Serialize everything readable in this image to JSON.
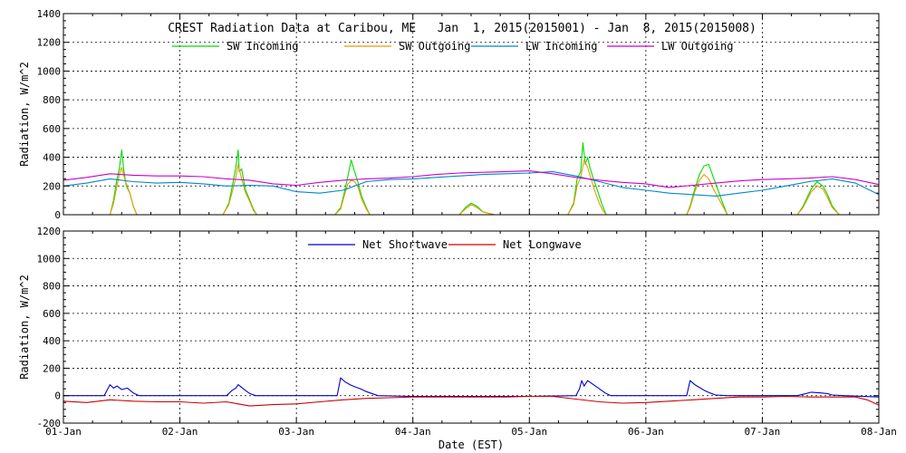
{
  "chart_data": [
    {
      "type": "line",
      "title": "CREST Radiation Data at Caribou, ME   Jan  1, 2015(2015001) - Jan  8, 2015(2015008)",
      "ylabel": "Radiation, W/m^2",
      "xlabel": "",
      "ylim": [
        0,
        1400
      ],
      "yticks": [
        0,
        200,
        400,
        600,
        800,
        1000,
        1200,
        1400
      ],
      "xlim": [
        0,
        7
      ],
      "xtick_labels": [
        "01-Jan",
        "02-Jan",
        "03-Jan",
        "04-Jan",
        "05-Jan",
        "06-Jan",
        "07-Jan",
        "08-Jan"
      ],
      "grid": true,
      "legend_placement": "top",
      "series": [
        {
          "name": "SW Incoming",
          "color": "#00dd00",
          "x": [
            0,
            0.4,
            0.43,
            0.46,
            0.48,
            0.5,
            0.52,
            0.54,
            0.57,
            0.6,
            0.63,
            1.37,
            1.42,
            1.45,
            1.48,
            1.5,
            1.51,
            1.53,
            1.56,
            1.6,
            1.63,
            1.66,
            2.33,
            2.38,
            2.41,
            2.44,
            2.47,
            2.5,
            2.53,
            2.56,
            2.6,
            2.63,
            3.3,
            3.4,
            3.45,
            3.5,
            3.55,
            3.6,
            3.7,
            4.33,
            4.38,
            4.41,
            4.44,
            4.46,
            4.48,
            4.5,
            4.52,
            4.55,
            4.58,
            4.62,
            4.66,
            5.35,
            5.38,
            5.42,
            5.46,
            5.5,
            5.54,
            5.58,
            5.62,
            5.66,
            5.7,
            6.3,
            6.35,
            6.42,
            6.47,
            6.52,
            6.56,
            6.6,
            6.66,
            7
          ],
          "y": [
            0,
            0,
            100,
            250,
            320,
            450,
            300,
            200,
            150,
            60,
            0,
            0,
            80,
            200,
            330,
            450,
            300,
            320,
            180,
            100,
            40,
            0,
            0,
            50,
            150,
            260,
            380,
            300,
            220,
            130,
            50,
            0,
            0,
            0,
            50,
            80,
            60,
            20,
            0,
            0,
            80,
            250,
            300,
            500,
            350,
            400,
            330,
            250,
            180,
            80,
            0,
            0,
            60,
            180,
            280,
            340,
            350,
            260,
            170,
            80,
            0,
            0,
            60,
            180,
            230,
            200,
            140,
            60,
            0,
            0
          ]
        },
        {
          "name": "SW Outgoing",
          "color": "#ee9900",
          "x": [
            0,
            0.4,
            0.43,
            0.46,
            0.48,
            0.5,
            0.53,
            0.57,
            0.6,
            0.63,
            1.37,
            1.42,
            1.45,
            1.48,
            1.5,
            1.53,
            1.56,
            1.6,
            1.63,
            1.66,
            2.33,
            2.38,
            2.41,
            2.44,
            2.47,
            2.5,
            2.53,
            2.56,
            2.6,
            2.63,
            3.3,
            3.4,
            3.45,
            3.5,
            3.55,
            3.6,
            3.7,
            4.33,
            4.38,
            4.41,
            4.44,
            4.47,
            4.5,
            4.53,
            4.56,
            4.6,
            4.63,
            4.66,
            5.35,
            5.38,
            5.42,
            5.46,
            5.5,
            5.54,
            5.58,
            5.62,
            5.66,
            5.7,
            6.3,
            6.35,
            6.42,
            6.47,
            6.52,
            6.56,
            6.6,
            6.66,
            7
          ],
          "y": [
            0,
            0,
            80,
            200,
            280,
            330,
            240,
            150,
            60,
            0,
            0,
            70,
            160,
            260,
            350,
            250,
            160,
            90,
            30,
            0,
            0,
            40,
            130,
            210,
            240,
            230,
            190,
            110,
            40,
            0,
            0,
            0,
            40,
            70,
            50,
            20,
            0,
            0,
            70,
            200,
            260,
            380,
            330,
            250,
            170,
            80,
            30,
            0,
            0,
            50,
            160,
            240,
            280,
            250,
            180,
            120,
            60,
            0,
            0,
            50,
            160,
            200,
            180,
            120,
            50,
            0,
            0
          ]
        },
        {
          "name": "LW Incoming",
          "color": "#0088cc",
          "x": [
            0,
            0.2,
            0.4,
            0.6,
            0.8,
            1.0,
            1.2,
            1.4,
            1.6,
            1.8,
            2.0,
            2.2,
            2.4,
            2.6,
            2.8,
            3.0,
            3.2,
            3.4,
            3.6,
            3.8,
            4.0,
            4.2,
            4.4,
            4.6,
            4.8,
            5.0,
            5.2,
            5.4,
            5.6,
            5.8,
            6.0,
            6.2,
            6.4,
            6.6,
            6.8,
            7.0
          ],
          "y": [
            200,
            220,
            250,
            230,
            220,
            225,
            215,
            200,
            205,
            200,
            160,
            150,
            170,
            230,
            245,
            250,
            260,
            270,
            280,
            285,
            290,
            300,
            270,
            230,
            190,
            170,
            150,
            140,
            130,
            150,
            170,
            200,
            230,
            250,
            220,
            140
          ]
        },
        {
          "name": "LW Outgoing",
          "color": "#cc00cc",
          "x": [
            0,
            0.2,
            0.4,
            0.6,
            0.8,
            1.0,
            1.2,
            1.4,
            1.6,
            1.8,
            2.0,
            2.2,
            2.4,
            2.6,
            2.8,
            3.0,
            3.2,
            3.4,
            3.6,
            3.8,
            4.0,
            4.2,
            4.4,
            4.6,
            4.8,
            5.0,
            5.2,
            5.4,
            5.6,
            5.8,
            6.0,
            6.2,
            6.4,
            6.6,
            6.8,
            7.0
          ],
          "y": [
            240,
            260,
            285,
            275,
            270,
            270,
            265,
            250,
            240,
            215,
            205,
            225,
            240,
            250,
            255,
            265,
            280,
            290,
            295,
            300,
            305,
            285,
            260,
            240,
            225,
            215,
            190,
            205,
            220,
            235,
            245,
            250,
            255,
            265,
            245,
            210
          ]
        }
      ]
    },
    {
      "type": "line",
      "title": "",
      "ylabel": "Radiation, W/m^2",
      "xlabel": "Date (EST)",
      "ylim": [
        -200,
        1200
      ],
      "yticks": [
        -200,
        0,
        200,
        400,
        600,
        800,
        1000,
        1200
      ],
      "xlim": [
        0,
        7
      ],
      "xtick_labels": [
        "01-Jan",
        "02-Jan",
        "03-Jan",
        "04-Jan",
        "05-Jan",
        "06-Jan",
        "07-Jan",
        "08-Jan"
      ],
      "grid": true,
      "legend_placement": "top",
      "series": [
        {
          "name": "Net Shortwave",
          "color": "#0000cc",
          "x": [
            0,
            0.35,
            0.4,
            0.43,
            0.46,
            0.5,
            0.55,
            0.6,
            0.65,
            1.0,
            1.4,
            1.45,
            1.48,
            1.5,
            1.53,
            1.56,
            1.6,
            1.65,
            2.0,
            2.35,
            2.38,
            2.42,
            2.46,
            2.5,
            2.55,
            2.6,
            2.7,
            3.0,
            3.5,
            4.0,
            4.4,
            4.43,
            4.45,
            4.47,
            4.5,
            4.55,
            4.6,
            4.65,
            4.7,
            5.0,
            5.35,
            5.38,
            5.42,
            5.46,
            5.5,
            5.55,
            5.6,
            5.7,
            6.0,
            6.3,
            6.35,
            6.42,
            6.5,
            6.56,
            6.6,
            6.7,
            7.0
          ],
          "y": [
            0,
            0,
            80,
            55,
            70,
            45,
            55,
            20,
            0,
            0,
            0,
            40,
            55,
            80,
            60,
            40,
            15,
            0,
            0,
            0,
            130,
            100,
            80,
            65,
            50,
            30,
            0,
            -5,
            -5,
            -5,
            0,
            50,
            110,
            70,
            110,
            80,
            50,
            20,
            0,
            0,
            0,
            110,
            80,
            60,
            40,
            20,
            5,
            0,
            0,
            0,
            10,
            25,
            20,
            15,
            5,
            0,
            -10
          ]
        },
        {
          "name": "Net Longwave",
          "color": "#cc0000",
          "x": [
            0,
            0.2,
            0.4,
            0.6,
            0.8,
            1.0,
            1.2,
            1.4,
            1.5,
            1.6,
            1.8,
            2.0,
            2.2,
            2.4,
            2.6,
            2.8,
            3.0,
            3.2,
            3.4,
            3.6,
            3.8,
            4.0,
            4.2,
            4.4,
            4.6,
            4.8,
            5.0,
            5.2,
            5.4,
            5.6,
            5.8,
            6.0,
            6.2,
            6.4,
            6.6,
            6.8,
            6.9,
            7.0
          ],
          "y": [
            -40,
            -50,
            -30,
            -40,
            -45,
            -45,
            -55,
            -45,
            -60,
            -75,
            -65,
            -60,
            -45,
            -30,
            -20,
            -15,
            -10,
            -10,
            -10,
            -10,
            -10,
            -5,
            -5,
            -25,
            -45,
            -55,
            -50,
            -40,
            -30,
            -20,
            -10,
            -10,
            -5,
            -10,
            -10,
            -10,
            -30,
            -70
          ]
        }
      ]
    }
  ]
}
